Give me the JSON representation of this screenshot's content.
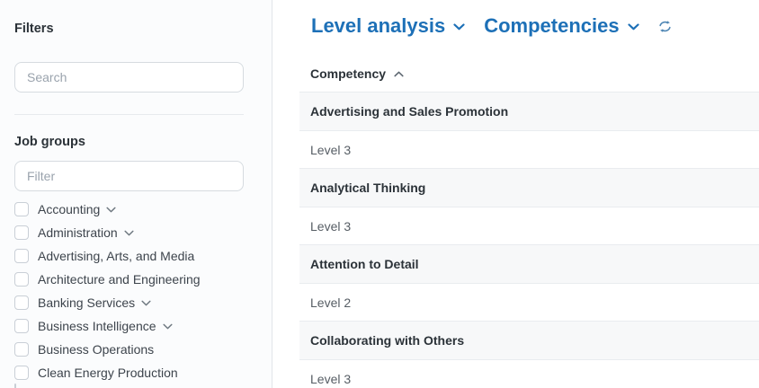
{
  "colors": {
    "accent": "#1d70b7",
    "band": "#f7f8f9",
    "border": "#e9ecef"
  },
  "sidebar": {
    "title": "Filters",
    "search_placeholder": "Search",
    "job_groups_label": "Job groups",
    "filter_placeholder": "Filter",
    "job_groups": [
      {
        "label": "Accounting",
        "expandable": true,
        "checked": false
      },
      {
        "label": "Administration",
        "expandable": true,
        "checked": false
      },
      {
        "label": "Advertising, Arts, and Media",
        "expandable": false,
        "checked": false
      },
      {
        "label": "Architecture and Engineering",
        "expandable": false,
        "checked": false
      },
      {
        "label": "Banking Services",
        "expandable": true,
        "checked": false
      },
      {
        "label": "Business Intelligence",
        "expandable": true,
        "checked": false
      },
      {
        "label": "Business Operations",
        "expandable": false,
        "checked": false
      },
      {
        "label": "Clean Energy Production",
        "expandable": false,
        "checked": false
      }
    ]
  },
  "header": {
    "view_selector_label": "Level analysis",
    "dataset_selector_label": "Competencies"
  },
  "table": {
    "column_header": "Competency",
    "sort_direction": "ascending",
    "rows": [
      {
        "competency": "Advertising and Sales Promotion",
        "level": "Level 3"
      },
      {
        "competency": "Analytical Thinking",
        "level": "Level 3"
      },
      {
        "competency": "Attention to Detail",
        "level": "Level 2"
      },
      {
        "competency": "Collaborating with Others",
        "level": "Level 3"
      }
    ]
  }
}
